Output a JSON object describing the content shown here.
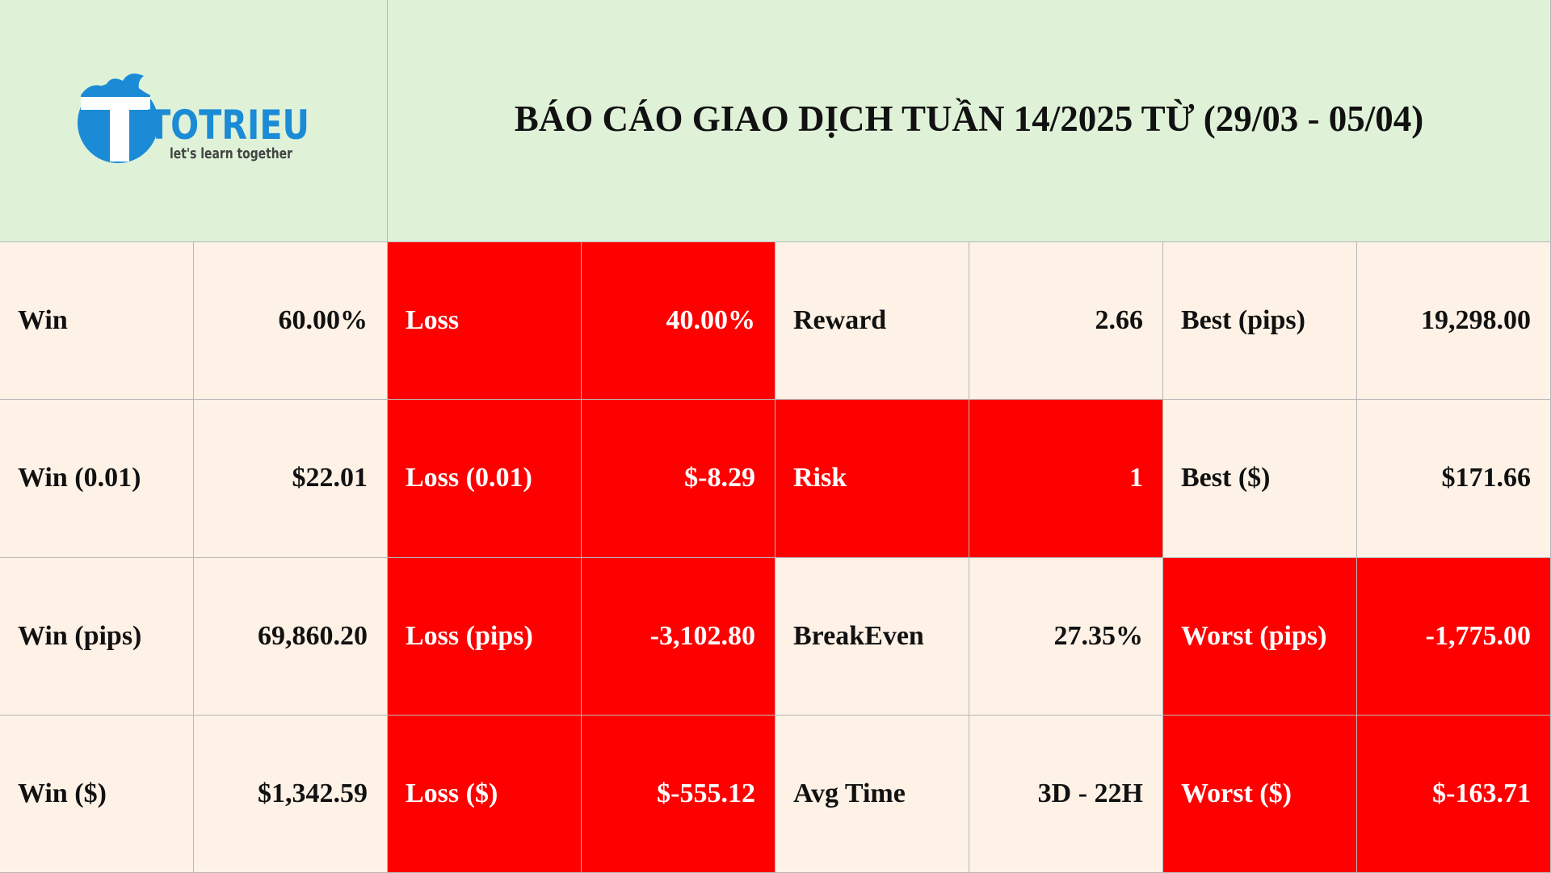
{
  "logo": {
    "name": "TOTRIEU",
    "tagline": "let's learn together"
  },
  "header": {
    "title": "BÁO CÁO GIAO DỊCH TUẦN 14/2025 TỪ (29/03 - 05/04)"
  },
  "table": {
    "rows": [
      [
        "Win",
        "60.00%",
        "Loss",
        "40.00%",
        "Reward",
        "2.66",
        "Best (pips)",
        "19,298.00"
      ],
      [
        "Win (0.01)",
        "$22.01",
        "Loss (0.01)",
        "$-8.29",
        "Risk",
        "1",
        "Best ($)",
        "$171.66"
      ],
      [
        "Win (pips)",
        "69,860.20",
        "Loss (pips)",
        "-3,102.80",
        "BreakEven",
        "27.35%",
        "Worst (pips)",
        "-1,775.00"
      ],
      [
        "Win ($)",
        "$1,342.59",
        "Loss ($)",
        "$-555.12",
        "Avg Time",
        "3D - 22H",
        "Worst ($)",
        "$-163.71"
      ]
    ]
  }
}
